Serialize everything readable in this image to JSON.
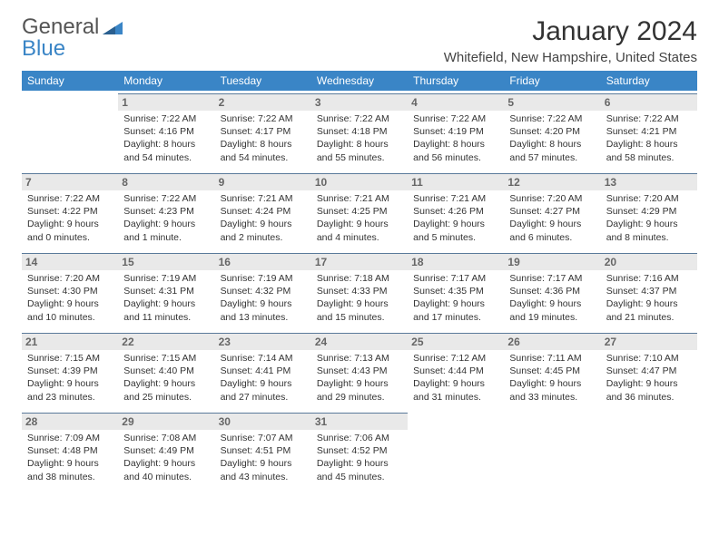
{
  "logo": {
    "general": "General",
    "blue": "Blue",
    "triangle_color": "#3a85c6"
  },
  "title": "January 2024",
  "location": "Whitefield, New Hampshire, United States",
  "colors": {
    "header_bg": "#3a85c6",
    "header_text": "#ffffff",
    "date_bar_bg": "#e9e9e9",
    "date_bar_border": "#5a7a9a",
    "body_text": "#333333"
  },
  "day_names": [
    "Sunday",
    "Monday",
    "Tuesday",
    "Wednesday",
    "Thursday",
    "Friday",
    "Saturday"
  ],
  "weeks": [
    [
      {
        "empty": true
      },
      {
        "date": "1",
        "sunrise": "Sunrise: 7:22 AM",
        "sunset": "Sunset: 4:16 PM",
        "daylight1": "Daylight: 8 hours",
        "daylight2": "and 54 minutes."
      },
      {
        "date": "2",
        "sunrise": "Sunrise: 7:22 AM",
        "sunset": "Sunset: 4:17 PM",
        "daylight1": "Daylight: 8 hours",
        "daylight2": "and 54 minutes."
      },
      {
        "date": "3",
        "sunrise": "Sunrise: 7:22 AM",
        "sunset": "Sunset: 4:18 PM",
        "daylight1": "Daylight: 8 hours",
        "daylight2": "and 55 minutes."
      },
      {
        "date": "4",
        "sunrise": "Sunrise: 7:22 AM",
        "sunset": "Sunset: 4:19 PM",
        "daylight1": "Daylight: 8 hours",
        "daylight2": "and 56 minutes."
      },
      {
        "date": "5",
        "sunrise": "Sunrise: 7:22 AM",
        "sunset": "Sunset: 4:20 PM",
        "daylight1": "Daylight: 8 hours",
        "daylight2": "and 57 minutes."
      },
      {
        "date": "6",
        "sunrise": "Sunrise: 7:22 AM",
        "sunset": "Sunset: 4:21 PM",
        "daylight1": "Daylight: 8 hours",
        "daylight2": "and 58 minutes."
      }
    ],
    [
      {
        "date": "7",
        "sunrise": "Sunrise: 7:22 AM",
        "sunset": "Sunset: 4:22 PM",
        "daylight1": "Daylight: 9 hours",
        "daylight2": "and 0 minutes."
      },
      {
        "date": "8",
        "sunrise": "Sunrise: 7:22 AM",
        "sunset": "Sunset: 4:23 PM",
        "daylight1": "Daylight: 9 hours",
        "daylight2": "and 1 minute."
      },
      {
        "date": "9",
        "sunrise": "Sunrise: 7:21 AM",
        "sunset": "Sunset: 4:24 PM",
        "daylight1": "Daylight: 9 hours",
        "daylight2": "and 2 minutes."
      },
      {
        "date": "10",
        "sunrise": "Sunrise: 7:21 AM",
        "sunset": "Sunset: 4:25 PM",
        "daylight1": "Daylight: 9 hours",
        "daylight2": "and 4 minutes."
      },
      {
        "date": "11",
        "sunrise": "Sunrise: 7:21 AM",
        "sunset": "Sunset: 4:26 PM",
        "daylight1": "Daylight: 9 hours",
        "daylight2": "and 5 minutes."
      },
      {
        "date": "12",
        "sunrise": "Sunrise: 7:20 AM",
        "sunset": "Sunset: 4:27 PM",
        "daylight1": "Daylight: 9 hours",
        "daylight2": "and 6 minutes."
      },
      {
        "date": "13",
        "sunrise": "Sunrise: 7:20 AM",
        "sunset": "Sunset: 4:29 PM",
        "daylight1": "Daylight: 9 hours",
        "daylight2": "and 8 minutes."
      }
    ],
    [
      {
        "date": "14",
        "sunrise": "Sunrise: 7:20 AM",
        "sunset": "Sunset: 4:30 PM",
        "daylight1": "Daylight: 9 hours",
        "daylight2": "and 10 minutes."
      },
      {
        "date": "15",
        "sunrise": "Sunrise: 7:19 AM",
        "sunset": "Sunset: 4:31 PM",
        "daylight1": "Daylight: 9 hours",
        "daylight2": "and 11 minutes."
      },
      {
        "date": "16",
        "sunrise": "Sunrise: 7:19 AM",
        "sunset": "Sunset: 4:32 PM",
        "daylight1": "Daylight: 9 hours",
        "daylight2": "and 13 minutes."
      },
      {
        "date": "17",
        "sunrise": "Sunrise: 7:18 AM",
        "sunset": "Sunset: 4:33 PM",
        "daylight1": "Daylight: 9 hours",
        "daylight2": "and 15 minutes."
      },
      {
        "date": "18",
        "sunrise": "Sunrise: 7:17 AM",
        "sunset": "Sunset: 4:35 PM",
        "daylight1": "Daylight: 9 hours",
        "daylight2": "and 17 minutes."
      },
      {
        "date": "19",
        "sunrise": "Sunrise: 7:17 AM",
        "sunset": "Sunset: 4:36 PM",
        "daylight1": "Daylight: 9 hours",
        "daylight2": "and 19 minutes."
      },
      {
        "date": "20",
        "sunrise": "Sunrise: 7:16 AM",
        "sunset": "Sunset: 4:37 PM",
        "daylight1": "Daylight: 9 hours",
        "daylight2": "and 21 minutes."
      }
    ],
    [
      {
        "date": "21",
        "sunrise": "Sunrise: 7:15 AM",
        "sunset": "Sunset: 4:39 PM",
        "daylight1": "Daylight: 9 hours",
        "daylight2": "and 23 minutes."
      },
      {
        "date": "22",
        "sunrise": "Sunrise: 7:15 AM",
        "sunset": "Sunset: 4:40 PM",
        "daylight1": "Daylight: 9 hours",
        "daylight2": "and 25 minutes."
      },
      {
        "date": "23",
        "sunrise": "Sunrise: 7:14 AM",
        "sunset": "Sunset: 4:41 PM",
        "daylight1": "Daylight: 9 hours",
        "daylight2": "and 27 minutes."
      },
      {
        "date": "24",
        "sunrise": "Sunrise: 7:13 AM",
        "sunset": "Sunset: 4:43 PM",
        "daylight1": "Daylight: 9 hours",
        "daylight2": "and 29 minutes."
      },
      {
        "date": "25",
        "sunrise": "Sunrise: 7:12 AM",
        "sunset": "Sunset: 4:44 PM",
        "daylight1": "Daylight: 9 hours",
        "daylight2": "and 31 minutes."
      },
      {
        "date": "26",
        "sunrise": "Sunrise: 7:11 AM",
        "sunset": "Sunset: 4:45 PM",
        "daylight1": "Daylight: 9 hours",
        "daylight2": "and 33 minutes."
      },
      {
        "date": "27",
        "sunrise": "Sunrise: 7:10 AM",
        "sunset": "Sunset: 4:47 PM",
        "daylight1": "Daylight: 9 hours",
        "daylight2": "and 36 minutes."
      }
    ],
    [
      {
        "date": "28",
        "sunrise": "Sunrise: 7:09 AM",
        "sunset": "Sunset: 4:48 PM",
        "daylight1": "Daylight: 9 hours",
        "daylight2": "and 38 minutes."
      },
      {
        "date": "29",
        "sunrise": "Sunrise: 7:08 AM",
        "sunset": "Sunset: 4:49 PM",
        "daylight1": "Daylight: 9 hours",
        "daylight2": "and 40 minutes."
      },
      {
        "date": "30",
        "sunrise": "Sunrise: 7:07 AM",
        "sunset": "Sunset: 4:51 PM",
        "daylight1": "Daylight: 9 hours",
        "daylight2": "and 43 minutes."
      },
      {
        "date": "31",
        "sunrise": "Sunrise: 7:06 AM",
        "sunset": "Sunset: 4:52 PM",
        "daylight1": "Daylight: 9 hours",
        "daylight2": "and 45 minutes."
      },
      {
        "empty": true
      },
      {
        "empty": true
      },
      {
        "empty": true
      }
    ]
  ]
}
